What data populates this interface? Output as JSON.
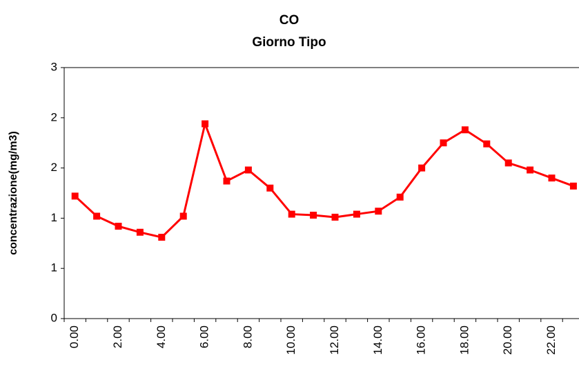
{
  "chart_data": {
    "type": "line",
    "title": "CO",
    "subtitle": "Giorno Tipo",
    "y_label": "concentrazione(mg/m3)",
    "categories": [
      "0.00",
      null,
      "2.00",
      null,
      "4.00",
      null,
      "6.00",
      null,
      "8.00",
      null,
      "10.00",
      null,
      "12.00",
      null,
      "14.00",
      null,
      "16.00",
      null,
      "18.00",
      null,
      "20.00",
      null,
      "22.00",
      null
    ],
    "series": [
      {
        "name": "CO",
        "color": "#ff0000",
        "values": [
          1.22,
          1.02,
          0.92,
          0.86,
          0.81,
          1.02,
          1.94,
          1.37,
          1.48,
          1.3,
          1.04,
          1.03,
          1.01,
          1.04,
          1.07,
          1.21,
          1.5,
          1.75,
          1.88,
          1.74,
          1.55,
          1.48,
          1.4,
          1.32
        ]
      }
    ],
    "ylim": [
      0,
      2.5
    ],
    "yticks": [
      0,
      {
        "value": 0.5,
        "label": "1"
      },
      1,
      {
        "value": 1.5,
        "label": "2"
      },
      2,
      {
        "value": 2.5,
        "label": "3"
      }
    ],
    "grid": false
  }
}
